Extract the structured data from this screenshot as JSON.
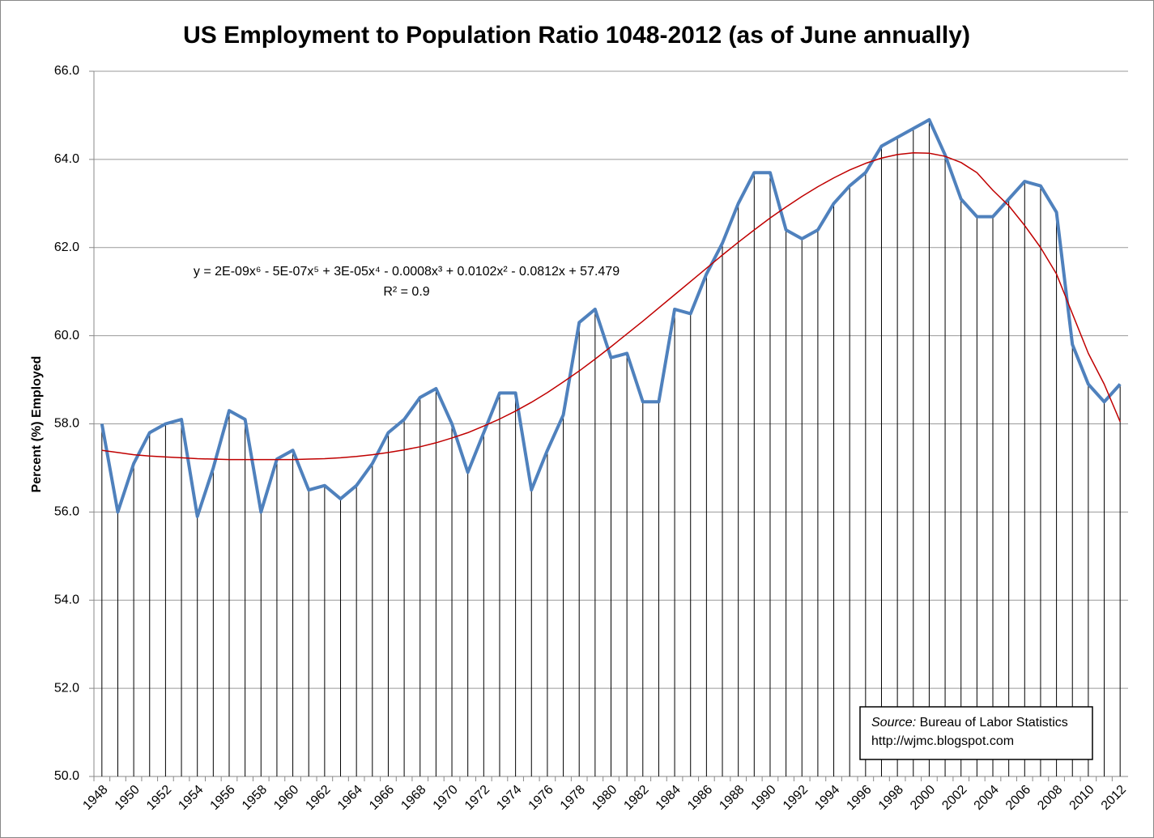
{
  "chart_data": {
    "type": "line",
    "title": "US Employment to Population Ratio 1048-2012 (as of June annually)",
    "y_label": "Percent (%) Employed",
    "categories": [
      "1948",
      null,
      "1950",
      null,
      "1952",
      null,
      "1954",
      null,
      "1956",
      null,
      "1958",
      null,
      "1960",
      null,
      "1962",
      null,
      "1964",
      null,
      "1966",
      null,
      "1968",
      null,
      "1970",
      null,
      "1972",
      null,
      "1974",
      null,
      "1976",
      null,
      "1978",
      null,
      "1980",
      null,
      "1982",
      null,
      "1984",
      null,
      "1986",
      null,
      "1988",
      null,
      "1990",
      null,
      "1992",
      null,
      "1994",
      null,
      "1996",
      null,
      "1998",
      null,
      "2000",
      null,
      "2002",
      null,
      "2004",
      null,
      "2006",
      null,
      "2008",
      null,
      "2010",
      null,
      "2012"
    ],
    "series": [
      {
        "color": "#4f81bd",
        "values": [
          58.0,
          56.0,
          57.1,
          57.8,
          58.0,
          58.1,
          55.9,
          57.0,
          58.3,
          58.1,
          56.0,
          57.2,
          57.4,
          56.5,
          56.6,
          56.3,
          56.6,
          57.1,
          57.8,
          58.1,
          58.6,
          58.8,
          58.0,
          56.9,
          57.8,
          58.7,
          58.7,
          56.5,
          57.4,
          58.2,
          60.3,
          60.6,
          59.5,
          59.6,
          58.5,
          58.5,
          60.6,
          60.5,
          61.4,
          62.1,
          63.0,
          63.7,
          63.7,
          62.4,
          62.2,
          62.4,
          63.0,
          63.4,
          63.7,
          64.3,
          64.5,
          64.7,
          64.9,
          64.1,
          63.1,
          62.7,
          62.7,
          63.1,
          63.5,
          63.4,
          62.8,
          59.8,
          58.9,
          58.5,
          58.9
        ]
      }
    ],
    "trendline": {
      "color": "#c00000",
      "values": [
        57.4,
        57.35,
        57.3,
        57.27,
        57.25,
        57.23,
        57.21,
        57.2,
        57.19,
        57.19,
        57.19,
        57.19,
        57.19,
        57.2,
        57.21,
        57.23,
        57.26,
        57.3,
        57.35,
        57.41,
        57.48,
        57.57,
        57.68,
        57.8,
        57.95,
        58.11,
        58.29,
        58.49,
        58.71,
        58.95,
        59.2,
        59.47,
        59.75,
        60.04,
        60.33,
        60.63,
        60.93,
        61.23,
        61.53,
        61.83,
        62.12,
        62.4,
        62.67,
        62.92,
        63.16,
        63.38,
        63.58,
        63.76,
        63.91,
        64.03,
        64.11,
        64.15,
        64.14,
        64.07,
        63.93,
        63.7,
        63.3,
        62.95,
        62.5,
        62.0,
        61.4,
        60.5,
        59.6,
        58.9,
        58.05
      ]
    },
    "equation": "y = 2E-09x⁶ - 5E-07x⁵ + 3E-05x⁴ - 0.0008x³ + 0.0102x² - 0.0812x + 57.479",
    "r_squared": "R² = 0.9",
    "source": {
      "label": "Source:",
      "text": "Bureau of Labor Statistics",
      "url": "http://wjmc.blogspot.com"
    },
    "ylim": [
      50,
      66
    ],
    "yticks": [
      {
        "value": 50,
        "label": "50.0"
      },
      {
        "value": 52,
        "label": "52.0"
      },
      {
        "value": 54,
        "label": "54.0"
      },
      {
        "value": 56,
        "label": "56.0"
      },
      {
        "value": 58,
        "label": "58.0"
      },
      {
        "value": 60,
        "label": "60.0"
      },
      {
        "value": 62,
        "label": "62.0"
      },
      {
        "value": 64,
        "label": "64.0"
      },
      {
        "value": 66,
        "label": "66.0"
      }
    ],
    "grid": true
  }
}
